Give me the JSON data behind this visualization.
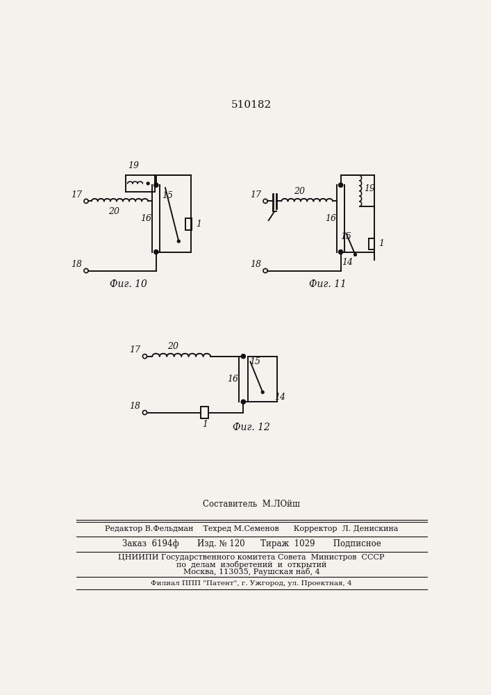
{
  "title": "510182",
  "bg_color": "#f5f2ee",
  "line_color": "#111111",
  "fig10_label": "Фиг. 10",
  "fig11_label": "Фиг. 11",
  "fig12_label": "Фиг. 12",
  "footer_lines": [
    "Составитель  М.ЛОйш",
    "Редактор В.Фельдман    Техред М.Семенов      Корректор  Л. Денискина",
    "Заказ  6194ф       Изд. № 120      Тираж  1029       Подписное",
    "ЦНИИПИ Государственного комитета Совета  Министров  СССР",
    "по  делам  изобретений  и  открытий",
    "Москва, 113035, Раушская наб, 4",
    "Филиал ППП \"Патент\", г. Ужгород, ул. Проектная, 4"
  ]
}
